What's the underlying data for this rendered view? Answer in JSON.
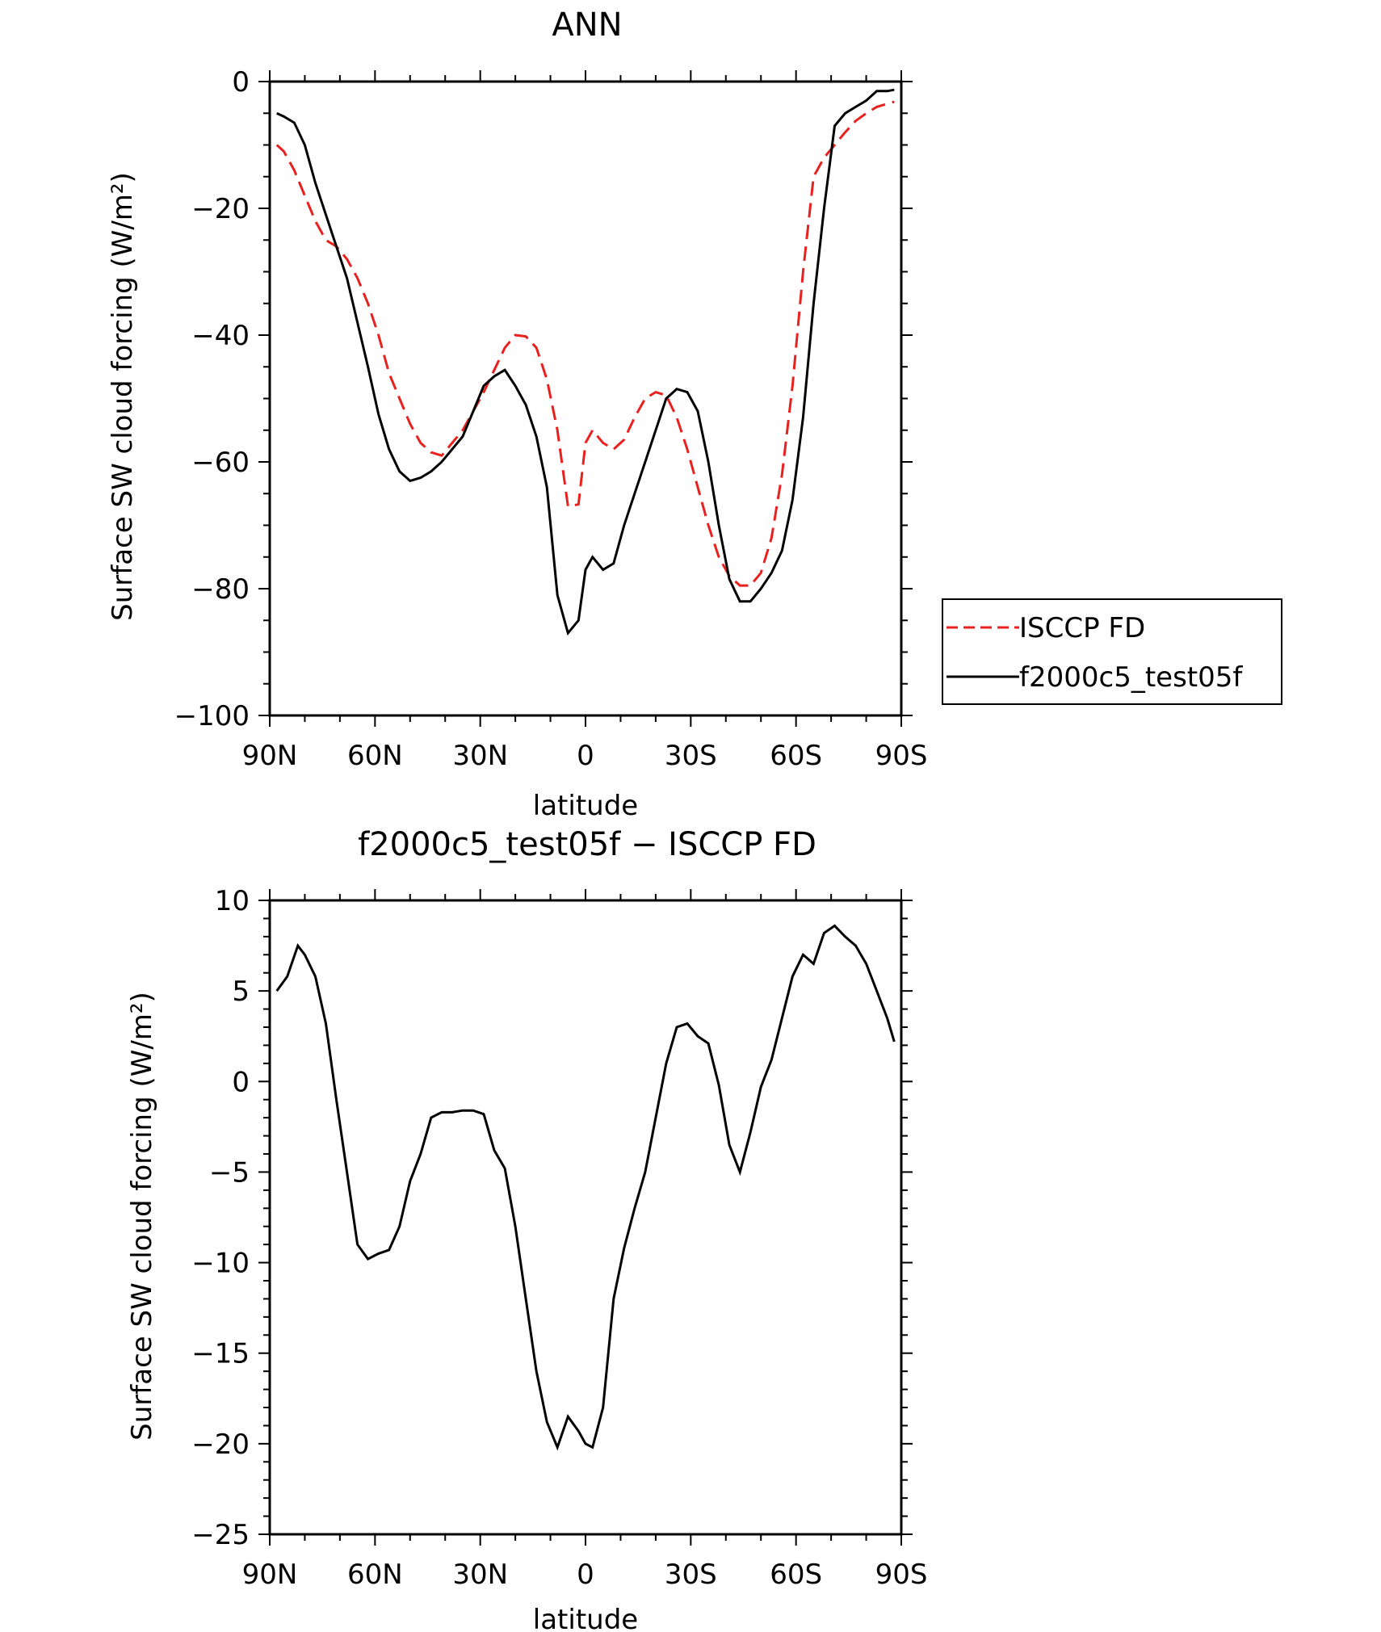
{
  "chart_data": [
    {
      "type": "line",
      "title": "ANN",
      "xlabel": "latitude",
      "ylabel": "Surface SW cloud forcing (W/m²)",
      "xlim": [
        90,
        -90
      ],
      "ylim": [
        -100,
        0
      ],
      "x_ticks": [
        90,
        60,
        30,
        0,
        -30,
        -60,
        -90
      ],
      "x_tick_labels": [
        "90N",
        "60N",
        "30N",
        "0",
        "30S",
        "60S",
        "90S"
      ],
      "y_ticks": [
        0,
        -20,
        -40,
        -60,
        -80,
        -100
      ],
      "y_tick_labels": [
        "0",
        "−20",
        "−40",
        "−60",
        "−80",
        "−100"
      ],
      "legend": {
        "position": "right-middle",
        "entries": [
          "ISCCP FD",
          "f2000c5_test05f"
        ]
      },
      "series": [
        {
          "name": "ISCCP FD",
          "color": "#e8211e",
          "style": "dashed",
          "x": [
            88,
            86,
            83,
            80,
            77,
            74,
            71,
            68,
            65,
            62,
            59,
            56,
            53,
            50,
            47,
            44,
            41,
            38,
            35,
            32,
            29,
            26,
            23,
            20,
            17,
            14,
            11,
            8,
            5,
            2,
            0,
            -2,
            -5,
            -8,
            -11,
            -14,
            -17,
            -20,
            -23,
            -26,
            -29,
            -32,
            -35,
            -38,
            -41,
            -44,
            -47,
            -50,
            -53,
            -56,
            -59,
            -62,
            -65,
            -68,
            -71,
            -74,
            -77,
            -80,
            -83,
            -86,
            -88
          ],
          "y": [
            -10,
            -11,
            -14,
            -18,
            -22,
            -25,
            -26,
            -28,
            -31,
            -35,
            -40,
            -46,
            -50,
            -54,
            -57,
            -58.5,
            -59,
            -57,
            -55,
            -52,
            -49,
            -45.5,
            -42,
            -40,
            -40.2,
            -42,
            -47,
            -55,
            -67,
            -66.7,
            -57,
            -55,
            -57,
            -58,
            -56.5,
            -53,
            -50,
            -49,
            -49.5,
            -53,
            -58,
            -64,
            -70,
            -75,
            -78,
            -79.5,
            -79.5,
            -77.5,
            -72,
            -62,
            -48,
            -30,
            -15,
            -12,
            -10,
            -8,
            -6.2,
            -5,
            -4,
            -3.5,
            -3.2
          ]
        },
        {
          "name": "f2000c5_test05f",
          "color": "#000000",
          "style": "solid",
          "x": [
            88,
            86,
            83,
            80,
            77,
            74,
            71,
            68,
            65,
            62,
            59,
            56,
            53,
            50,
            47,
            44,
            41,
            38,
            35,
            32,
            29,
            26,
            23,
            20,
            17,
            14,
            11,
            8,
            5,
            2,
            0,
            -2,
            -5,
            -8,
            -11,
            -14,
            -17,
            -20,
            -23,
            -26,
            -29,
            -32,
            -35,
            -38,
            -41,
            -44,
            -47,
            -50,
            -53,
            -56,
            -59,
            -62,
            -65,
            -68,
            -71,
            -74,
            -77,
            -80,
            -83,
            -86,
            -88
          ],
          "y": [
            -5,
            -5.5,
            -6.5,
            -10,
            -16,
            -21,
            -26,
            -31,
            -38,
            -45,
            -52.5,
            -58,
            -61.5,
            -63,
            -62.5,
            -61.5,
            -60,
            -58,
            -56,
            -52,
            -48,
            -46.5,
            -45.5,
            -48,
            -51,
            -56,
            -64,
            -81,
            -87,
            -85,
            -77,
            -75,
            -77,
            -76,
            -70,
            -65,
            -60,
            -55,
            -50,
            -48.5,
            -49,
            -52,
            -60,
            -70,
            -78.5,
            -82,
            -82,
            -80,
            -77.5,
            -74,
            -66,
            -53,
            -35,
            -20,
            -7,
            -5,
            -4,
            -3,
            -1.5,
            -1.5,
            -1.3
          ]
        }
      ]
    },
    {
      "type": "line",
      "title": "f2000c5_test05f − ISCCP FD",
      "xlabel": "latitude",
      "ylabel": "Surface SW cloud forcing (W/m²)",
      "xlim": [
        90,
        -90
      ],
      "ylim": [
        -25,
        10
      ],
      "x_ticks": [
        90,
        60,
        30,
        0,
        -30,
        -60,
        -90
      ],
      "x_tick_labels": [
        "90N",
        "60N",
        "30N",
        "0",
        "30S",
        "60S",
        "90S"
      ],
      "y_ticks": [
        10,
        5,
        0,
        -5,
        -10,
        -15,
        -20,
        -25
      ],
      "y_tick_labels": [
        "10",
        "5",
        "0",
        "−5",
        "−10",
        "−15",
        "−20",
        "−25"
      ],
      "series": [
        {
          "name": "f2000c5_test05f − ISCCP FD",
          "color": "#000000",
          "style": "solid",
          "x": [
            88,
            85,
            82,
            80,
            77,
            74,
            71,
            68,
            65,
            62,
            59,
            56,
            53,
            50,
            47,
            44,
            41,
            38,
            35,
            32,
            29,
            26,
            23,
            20,
            17,
            14,
            11,
            8,
            5,
            2,
            0,
            -2,
            -5,
            -8,
            -11,
            -14,
            -17,
            -20,
            -23,
            -26,
            -29,
            -32,
            -35,
            -38,
            -41,
            -44,
            -47,
            -50,
            -53,
            -56,
            -59,
            -62,
            -65,
            -68,
            -71,
            -74,
            -77,
            -80,
            -83,
            -86,
            -88
          ],
          "y": [
            5.0,
            5.8,
            7.5,
            7.0,
            5.8,
            3.2,
            -1.0,
            -5.0,
            -9.0,
            -9.8,
            -9.5,
            -9.3,
            -8.0,
            -5.5,
            -4.0,
            -2.0,
            -1.7,
            -1.7,
            -1.6,
            -1.6,
            -1.8,
            -3.8,
            -4.8,
            -8.0,
            -12.0,
            -16.0,
            -18.8,
            -20.2,
            -18.5,
            -19.3,
            -20.0,
            -20.2,
            -18.0,
            -12.0,
            -9.2,
            -7.0,
            -5.0,
            -2.0,
            1.0,
            3.0,
            3.2,
            2.5,
            2.1,
            -0.2,
            -3.5,
            -5.0,
            -2.8,
            -0.3,
            1.2,
            3.5,
            5.8,
            7.0,
            6.5,
            8.2,
            8.6,
            8.0,
            7.5,
            6.5,
            5.0,
            3.5,
            2.2
          ]
        }
      ]
    }
  ]
}
